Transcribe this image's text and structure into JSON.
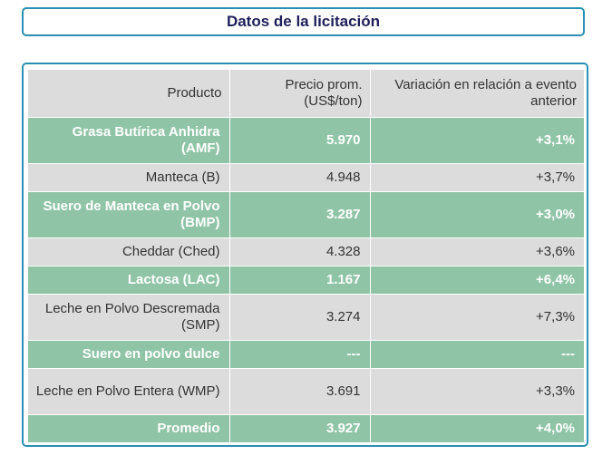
{
  "title": "Datos de la licitación",
  "table": {
    "headers": [
      "Producto",
      "Precio prom. (US$/ton)",
      "Variación en relación a evento anterior"
    ],
    "rows": [
      {
        "producto": "Grasa Butírica Anhidra (AMF)",
        "precio": "5.970",
        "variacion": "+3,1%"
      },
      {
        "producto": "Manteca (B)",
        "precio": "4.948",
        "variacion": "+3,7%"
      },
      {
        "producto": "Suero de Manteca en Polvo (BMP)",
        "precio": "3.287",
        "variacion": "+3,0%"
      },
      {
        "producto": "Cheddar (Ched)",
        "precio": "4.328",
        "variacion": "+3,6%"
      },
      {
        "producto": "Lactosa (LAC)",
        "precio": "1.167",
        "variacion": "+6,4%"
      },
      {
        "producto": "Leche en Polvo Descremada (SMP)",
        "precio": "3.274",
        "variacion": "+7,3%"
      },
      {
        "producto": "Suero en polvo dulce",
        "precio": "---",
        "variacion": "---"
      },
      {
        "producto": "Leche en Polvo Entera (WMP)",
        "precio": "3.691",
        "variacion": "+3,3%"
      },
      {
        "producto": "Promedio",
        "precio": "3.927",
        "variacion": "+4,0%"
      }
    ]
  },
  "colors": {
    "border": "#2a8fb3",
    "title_text": "#1e1e5a",
    "green_row": "#8fc4a6",
    "gray_row": "#dcdcdc"
  }
}
